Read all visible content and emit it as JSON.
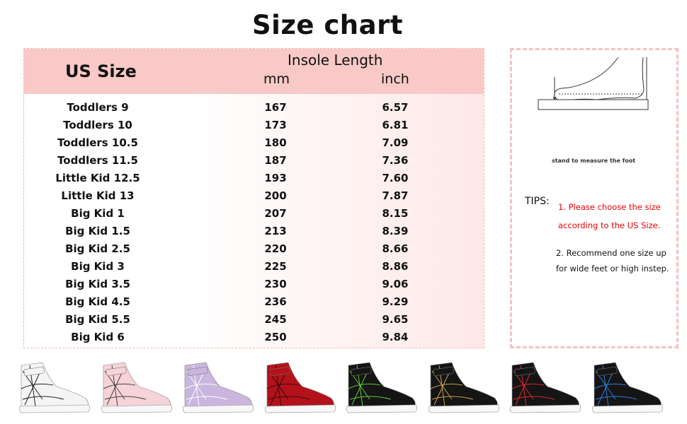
{
  "title": "Size chart",
  "table": {
    "headers": {
      "us_size": "US Size",
      "insole_length": "Insole Length",
      "mm": "mm",
      "inch": "inch"
    },
    "rows": [
      [
        "Toddlers 9",
        "167",
        "6.57"
      ],
      [
        "Toddlers 10",
        "173",
        "6.81"
      ],
      [
        "Toddlers 10.5",
        "180",
        "7.09"
      ],
      [
        "Toddlers 11.5",
        "187",
        "7.36"
      ],
      [
        "Little Kid 12.5",
        "193",
        "7.60"
      ],
      [
        "Little Kid 13",
        "200",
        "7.87"
      ],
      [
        "Big Kid 1",
        "207",
        "8.15"
      ],
      [
        "Big Kid 1.5",
        "213",
        "8.39"
      ],
      [
        "Big Kid 2.5",
        "220",
        "8.66"
      ],
      [
        "Big Kid 3",
        "225",
        "8.86"
      ],
      [
        "Big Kid 3.5",
        "230",
        "9.06"
      ],
      [
        "Big Kid 4.5",
        "236",
        "9.29"
      ],
      [
        "Big Kid 5.5",
        "245",
        "9.65"
      ],
      [
        "Big Kid 6",
        "250",
        "9.84"
      ]
    ]
  },
  "panel": {
    "caption": "stand to measure the foot",
    "tips_label": "TIPS:",
    "tip1_line1": "1. Please choose the size",
    "tip1_line2": "according to the US Size.",
    "tip2": "2. Recommend one size up for wide feet or high instep."
  },
  "colors": {
    "header_bg": "#f8c9c6",
    "border": "#f2b8b6",
    "tip_red": "#e60000"
  },
  "shoes": [
    {
      "upper": "#f4f4f4",
      "web": "#222222"
    },
    {
      "upper": "#f6d3d8",
      "web": "#444444"
    },
    {
      "upper": "#c9b5de",
      "web": "#ffffff"
    },
    {
      "upper": "#b3121b",
      "web": "#3a0a0a"
    },
    {
      "upper": "#151515",
      "web": "#5fc93a"
    },
    {
      "upper": "#151515",
      "web": "#c9a04a"
    },
    {
      "upper": "#151515",
      "web": "#e0262b"
    },
    {
      "upper": "#151515",
      "web": "#2f7de0"
    }
  ]
}
